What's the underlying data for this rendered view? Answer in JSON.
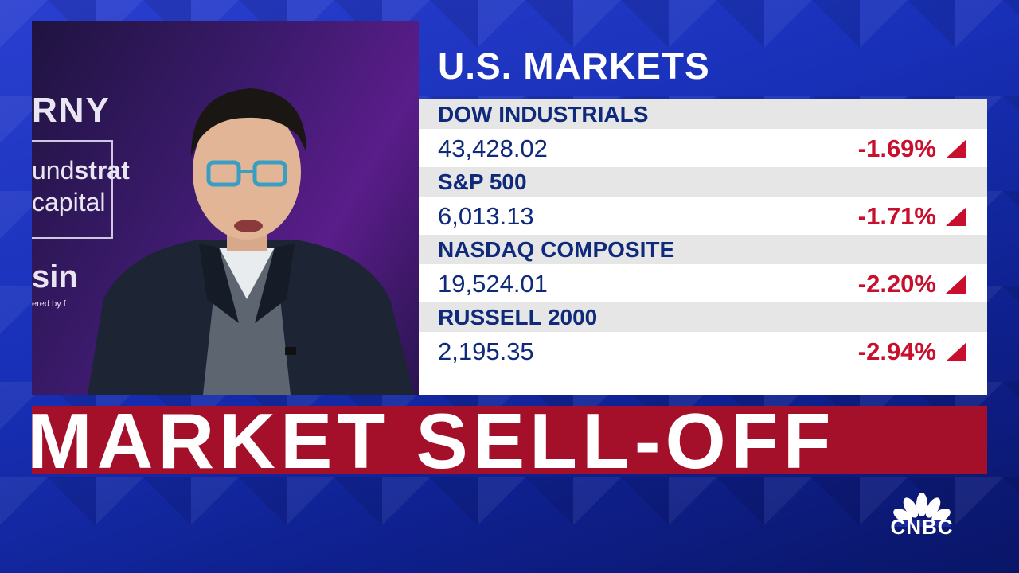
{
  "video": {
    "brand_top": "RNY",
    "brand_line1_pre": "und",
    "brand_line1_bold": "strat",
    "brand_line2": "capital",
    "brand_sin": "sin",
    "brand_powered": "ered by f"
  },
  "markets": {
    "title": "U.S. MARKETS",
    "rows": [
      {
        "name": "DOW INDUSTRIALS",
        "value": "43,428.02",
        "change": "-1.69%"
      },
      {
        "name": "S&P 500",
        "value": "6,013.13",
        "change": "-1.71%"
      },
      {
        "name": "NASDAQ COMPOSITE",
        "value": "19,524.01",
        "change": "-2.20%"
      },
      {
        "name": "RUSSELL 2000",
        "value": "2,195.35",
        "change": "-2.94%"
      }
    ],
    "down_color": "#c8102e",
    "arrow_icon": "down-triangle-icon"
  },
  "banner": {
    "text": "MARKET SELL-OFF",
    "color": "#a4102a"
  },
  "network": {
    "logo_text": "CNBC",
    "logo_icon": "peacock-icon"
  }
}
